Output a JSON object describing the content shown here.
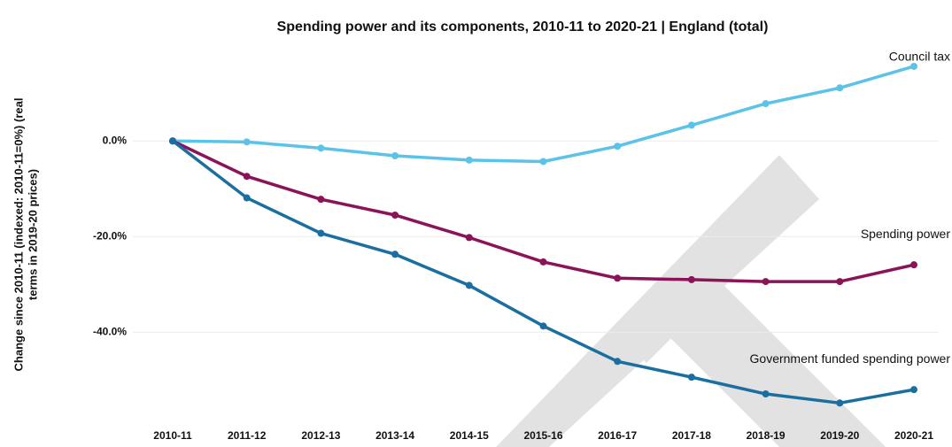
{
  "chart_data": {
    "type": "line",
    "title": "Spending power and its components, 2010-11 to 2020-21 | England (total)",
    "y_label_lines": [
      "Change since 2010-11 (indexed: 2010-11=0%) (real",
      "terms in 2019-20 prices)"
    ],
    "categories": [
      "2010-11",
      "2011-12",
      "2012-13",
      "2013-14",
      "2014-15",
      "2015-16",
      "2016-17",
      "2017-18",
      "2018-19",
      "2019-20",
      "2020-21"
    ],
    "series": [
      {
        "name": "Council tax",
        "color": "#5bc3e8",
        "values": [
          0,
          -0.2,
          -1.5,
          -3.1,
          -4.0,
          -4.3,
          -1.1,
          3.3,
          7.8,
          11.1,
          15.6
        ]
      },
      {
        "name": "Spending power",
        "color": "#8b1357",
        "values": [
          0,
          -7.4,
          -12.2,
          -15.5,
          -20.2,
          -25.3,
          -28.7,
          -29.0,
          -29.4,
          -29.4,
          -25.9
        ]
      },
      {
        "name": "Government funded spending power",
        "color": "#1a6fa0",
        "values": [
          0,
          -11.9,
          -19.3,
          -23.7,
          -30.2,
          -38.7,
          -46.1,
          -49.4,
          -52.9,
          -54.8,
          -52.0
        ]
      }
    ],
    "ylim": [
      -59,
      18
    ],
    "yticks": [
      {
        "value": 0,
        "label": "0.0%"
      },
      {
        "value": -20,
        "label": "-20.0%"
      },
      {
        "value": -40,
        "label": "-40.0%"
      }
    ],
    "grid": true
  }
}
